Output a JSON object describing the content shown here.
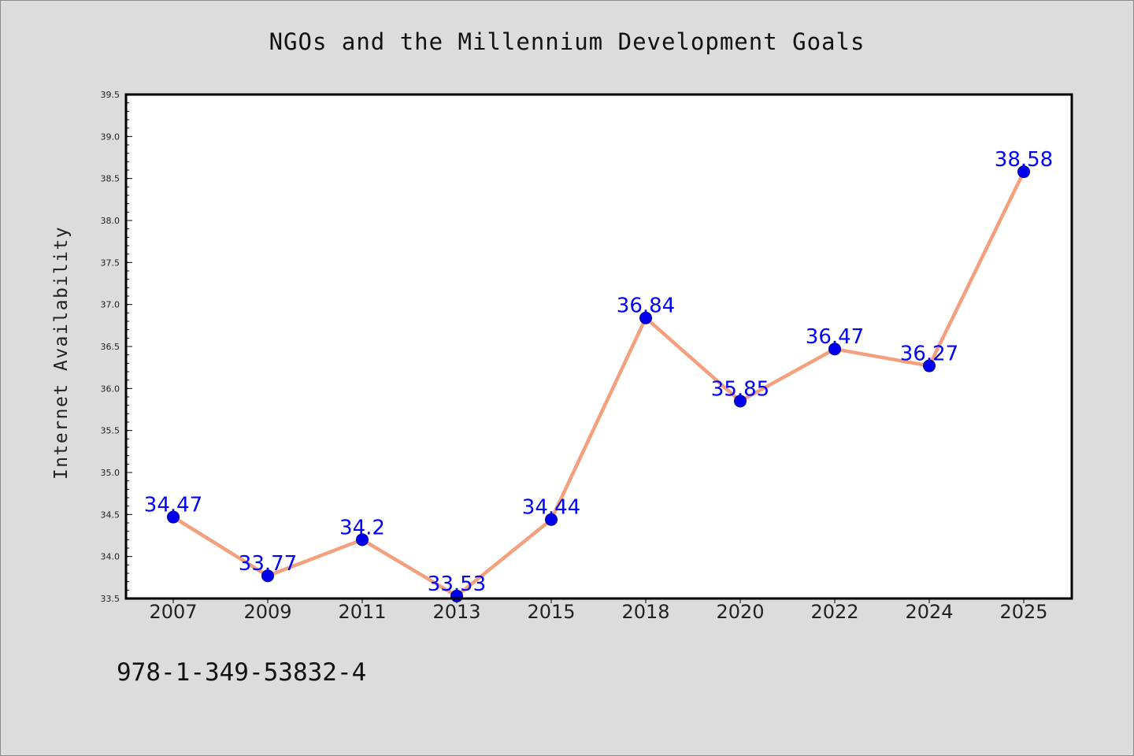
{
  "chart_data": {
    "type": "line",
    "title": "NGOs and the Millennium Development Goals",
    "xlabel": "",
    "ylabel": "Internet Availability",
    "categories": [
      "2007",
      "2009",
      "2011",
      "2013",
      "2015",
      "2018",
      "2020",
      "2022",
      "2024",
      "2025"
    ],
    "series": [
      {
        "values": [
          34.47,
          33.77,
          34.2,
          33.53,
          34.44,
          36.84,
          35.85,
          36.47,
          36.27,
          38.58
        ]
      }
    ],
    "data_labels": [
      "34.47",
      "33.77",
      "34.2",
      "33.53",
      "34.44",
      "36.84",
      "35.85",
      "36.47",
      "36.27",
      "38.58"
    ],
    "ylim": [
      33.5,
      39.5
    ],
    "yticks": [
      "33.5",
      "34.0",
      "34.5",
      "35.0",
      "35.5",
      "36.0",
      "36.5",
      "37.0",
      "37.5",
      "38.0",
      "38.5",
      "39.0",
      "39.5"
    ],
    "grid": false,
    "legend": "none",
    "colors": {
      "line": "#f4a07e",
      "marker_fill": "#0000ee",
      "marker_edge": "#00008b",
      "data_label": "#0000ff",
      "plot_background": "#ffffff",
      "figure_background": "#dcdcdc"
    }
  },
  "footer": {
    "isbn": "978-1-349-53832-4"
  }
}
